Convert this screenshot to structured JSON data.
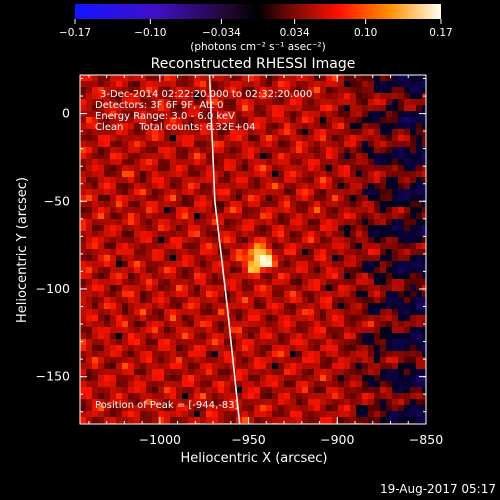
{
  "chart_data": {
    "type": "heatmap",
    "title": "Reconstructed RHESSI Image",
    "xlabel": "Heliocentric X (arcsec)",
    "ylabel": "Heliocentric Y (arcsec)",
    "xlim": [
      -1045,
      -850
    ],
    "ylim": [
      -177,
      22
    ],
    "x_ticks": [
      -1000,
      -950,
      -900,
      -850
    ],
    "x_tick_labels": [
      "−1000",
      "−950",
      "−900",
      "−850"
    ],
    "y_ticks": [
      0,
      -50,
      -100,
      -150
    ],
    "y_tick_labels": [
      "0",
      "−50",
      "−100",
      "−150"
    ],
    "colorbar": {
      "min": -0.17,
      "max": 0.17,
      "ticks": [
        -0.17,
        -0.1,
        -0.034,
        0.034,
        0.1,
        0.17
      ],
      "tick_labels": [
        "−0.17",
        "−0.10",
        "−0.034",
        "0.034",
        "0.10",
        "0.17"
      ],
      "unit_text": "(photons cm⁻² s⁻¹ asec⁻²)",
      "colormap": "RHESSI blue-black-red-yellow-white"
    },
    "peak": {
      "x": -944,
      "y": -83,
      "value": 0.17
    },
    "limb_line": [
      [
        -972,
        22
      ],
      [
        -969,
        -50
      ],
      [
        -962,
        -110
      ],
      [
        -955,
        -177
      ]
    ],
    "annotations": [
      "3-Dec-2014 02:22:20.000 to 02:32:20.000",
      "Detectors: 3F 6F 9F, Att 0",
      "Energy Range: 3.0 - 6.0 keV",
      "Clean     Total counts: 6.32E+04"
    ],
    "peak_label": "Position of Peak = [-944,-83]",
    "grid": false
  },
  "timestamp": "19-Aug-2017 05:17",
  "colors": {
    "background": "#000000",
    "foreground": "#ffffff",
    "negative": "#2a1a6e",
    "positive": "#ff1800",
    "peak": "#ffffd0"
  }
}
